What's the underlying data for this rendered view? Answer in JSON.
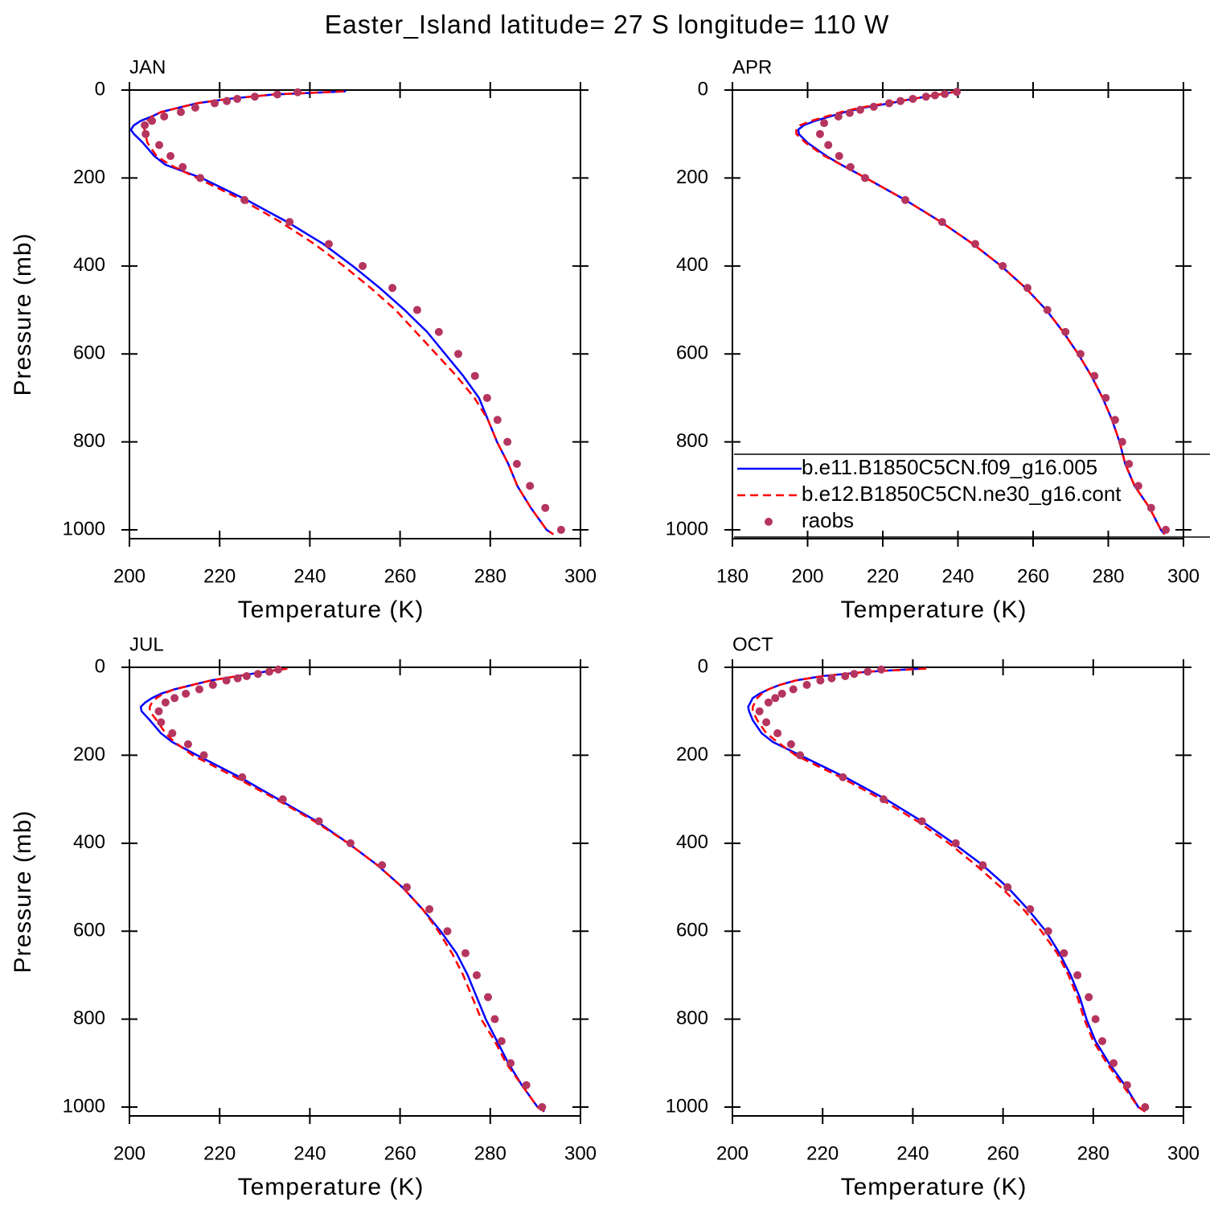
{
  "title": "Easter_Island  latitude= 27 S longitude= 110 W",
  "chart_data": [
    {
      "type": "line",
      "title": "JAN",
      "xlabel": "Temperature (K)",
      "ylabel": "Pressure (mb)",
      "xlim": [
        200,
        300
      ],
      "xticks": [
        200,
        220,
        240,
        260,
        280,
        300
      ],
      "ylim": [
        1020,
        0
      ],
      "yticks": [
        0,
        200,
        400,
        600,
        800,
        1000
      ],
      "legend": false,
      "series": [
        {
          "name": "b.e11.B1850C5CN.f09_g16.005",
          "color": "#0000ff",
          "style": "solid",
          "x": [
            248,
            232,
            222,
            215,
            211,
            207,
            205,
            202.5,
            201,
            200.3,
            201,
            203,
            205.5,
            208,
            216,
            226,
            235,
            243,
            249.5,
            255.5,
            261,
            266,
            270,
            274,
            277.5,
            279.5,
            281.5,
            284,
            286,
            289,
            292.5,
            294
          ],
          "y": [
            3,
            10,
            20,
            30,
            40,
            50,
            60,
            70,
            80,
            90,
            100,
            120,
            150,
            170,
            200,
            250,
            300,
            350,
            400,
            450,
            500,
            550,
            600,
            650,
            700,
            750,
            800,
            850,
            900,
            950,
            1000,
            1010
          ]
        },
        {
          "name": "b.e12.B1850C5CN.ne30_g16.cont",
          "color": "#ff0000",
          "style": "dashed",
          "x": [
            247.5,
            232,
            222,
            215,
            211,
            207,
            205,
            204,
            203.5,
            203.3,
            203.5,
            204,
            206,
            209,
            215,
            225,
            233.5,
            241,
            247.5,
            253.5,
            259,
            263.5,
            268,
            272.5,
            276.5,
            279.5,
            281.5,
            284,
            286,
            289,
            292.5,
            294
          ],
          "y": [
            3,
            10,
            20,
            30,
            40,
            50,
            60,
            70,
            80,
            90,
            100,
            120,
            150,
            170,
            200,
            250,
            300,
            350,
            400,
            450,
            500,
            550,
            600,
            650,
            700,
            750,
            800,
            850,
            900,
            950,
            1000,
            1010
          ]
        },
        {
          "name": "raobs",
          "color": "#b5355f",
          "style": "dots",
          "x": [
            237.3,
            232.8,
            227.8,
            223.9,
            221.6,
            218.9,
            214.6,
            211.4,
            207.7,
            205,
            203.4,
            203.6,
            206.6,
            209.1,
            211.8,
            215.7,
            225.5,
            235.5,
            244.2,
            251.7,
            258.3,
            263.8,
            268.6,
            272.9,
            276.6,
            279.3,
            281.6,
            283.8,
            285.9,
            288.8,
            292.2,
            295.7
          ],
          "y": [
            5,
            10,
            15,
            20,
            25,
            30,
            40,
            50,
            60,
            70,
            80,
            100,
            125,
            150,
            175,
            200,
            250,
            300,
            350,
            400,
            450,
            500,
            550,
            600,
            650,
            700,
            750,
            800,
            850,
            900,
            950,
            1000
          ]
        }
      ]
    },
    {
      "type": "line",
      "title": "APR",
      "xlabel": "Temperature (K)",
      "xlim": [
        180,
        300
      ],
      "xticks": [
        180,
        200,
        220,
        240,
        260,
        280,
        300
      ],
      "ylim": [
        1020,
        0
      ],
      "yticks": [
        0,
        200,
        400,
        600,
        800,
        1000
      ],
      "legend": true,
      "series": [
        {
          "name": "b.e11.B1850C5CN.f09_g16.005",
          "color": "#0000ff",
          "style": "solid",
          "x": [
            240,
            235,
            228,
            222,
            215,
            210,
            206,
            202,
            199,
            197.5,
            197.7,
            200,
            205,
            209,
            215.5,
            226,
            235.5,
            244,
            251.5,
            258,
            263.5,
            268,
            272,
            275.5,
            278.5,
            281,
            283,
            284.5,
            287,
            291,
            294,
            295
          ],
          "y": [
            3,
            10,
            20,
            30,
            40,
            50,
            60,
            70,
            80,
            90,
            100,
            120,
            150,
            170,
            200,
            250,
            300,
            350,
            400,
            450,
            500,
            550,
            600,
            650,
            700,
            750,
            800,
            850,
            900,
            950,
            1000,
            1010
          ]
        },
        {
          "name": "b.e12.B1850C5CN.ne30_g16.cont",
          "color": "#ff0000",
          "style": "dashed",
          "x": [
            240,
            235,
            228,
            221,
            214,
            209,
            205,
            201,
            198,
            197,
            197,
            199.5,
            204.5,
            209,
            215.5,
            226,
            235.5,
            244,
            251.5,
            258,
            263.5,
            268,
            272,
            275.5,
            278.5,
            281,
            283,
            284.5,
            287,
            291,
            294,
            295
          ],
          "y": [
            3,
            10,
            20,
            30,
            40,
            50,
            60,
            70,
            80,
            90,
            100,
            120,
            150,
            170,
            200,
            250,
            300,
            350,
            400,
            450,
            500,
            550,
            600,
            650,
            700,
            750,
            800,
            850,
            900,
            950,
            1000,
            1010
          ]
        },
        {
          "name": "raobs",
          "color": "#b5355f",
          "style": "dots",
          "x": [
            239.7,
            236.5,
            233.9,
            231.5,
            228,
            224.7,
            221.7,
            217.6,
            214,
            211.2,
            208.2,
            204.4,
            203.3,
            205.5,
            208.4,
            211.4,
            215.3,
            226,
            235.8,
            244.6,
            251.9,
            258.5,
            263.8,
            268.6,
            272.6,
            276.3,
            279.3,
            281.8,
            283.7,
            285.5,
            288,
            291.4,
            295.3
          ],
          "y": [
            4,
            9,
            12,
            15,
            20,
            25,
            30,
            38,
            45,
            52,
            60,
            75,
            100,
            125,
            150,
            175,
            200,
            250,
            300,
            350,
            400,
            450,
            500,
            550,
            600,
            650,
            700,
            750,
            800,
            850,
            900,
            950,
            1000
          ]
        }
      ]
    },
    {
      "type": "line",
      "title": "JUL",
      "xlabel": "Temperature (K)",
      "ylabel": "Pressure (mb)",
      "xlim": [
        200,
        300
      ],
      "xticks": [
        200,
        220,
        240,
        260,
        280,
        300
      ],
      "ylim": [
        1020,
        0
      ],
      "yticks": [
        0,
        200,
        400,
        600,
        800,
        1000
      ],
      "legend": false,
      "series": [
        {
          "name": "b.e11.B1850C5CN.f09_g16.005",
          "color": "#0000ff",
          "style": "solid",
          "x": [
            235,
            230,
            224,
            218,
            214,
            210,
            207,
            205,
            203.5,
            202.5,
            202.7,
            204.5,
            207,
            209.5,
            215,
            224.5,
            233,
            241.5,
            248.5,
            255,
            260.5,
            265,
            269,
            272.5,
            275,
            277,
            279,
            281.5,
            284,
            287,
            290.5,
            292
          ],
          "y": [
            3,
            10,
            20,
            30,
            40,
            50,
            60,
            70,
            80,
            90,
            100,
            120,
            150,
            170,
            200,
            250,
            300,
            350,
            400,
            450,
            500,
            550,
            600,
            650,
            700,
            750,
            800,
            850,
            900,
            950,
            1000,
            1010
          ]
        },
        {
          "name": "b.e12.B1850C5CN.ne30_g16.cont",
          "color": "#ff0000",
          "style": "dashed",
          "x": [
            235,
            230,
            224,
            218,
            214,
            210,
            207.5,
            206,
            205,
            204.5,
            204.5,
            206,
            208,
            210,
            214,
            223.5,
            232.5,
            241,
            248.5,
            255,
            260.5,
            265,
            268.5,
            271.5,
            274,
            276,
            278,
            281,
            283.5,
            287,
            290.5,
            292
          ],
          "y": [
            3,
            10,
            20,
            30,
            40,
            50,
            60,
            70,
            80,
            90,
            100,
            120,
            150,
            170,
            200,
            250,
            300,
            350,
            400,
            450,
            500,
            550,
            600,
            650,
            700,
            750,
            800,
            850,
            900,
            950,
            1000,
            1010
          ]
        },
        {
          "name": "raobs",
          "color": "#b5355f",
          "style": "dots",
          "x": [
            233,
            231,
            228.5,
            226,
            224,
            221.5,
            218.5,
            215.5,
            212.5,
            210,
            208,
            206.5,
            207,
            209.5,
            213,
            216.5,
            225,
            234,
            242,
            249,
            256,
            261.5,
            266.5,
            270.5,
            274.5,
            277,
            279.5,
            281,
            282.5,
            284.5,
            288,
            291.5
          ],
          "y": [
            5,
            10,
            15,
            20,
            25,
            30,
            40,
            50,
            60,
            70,
            80,
            100,
            125,
            150,
            175,
            200,
            250,
            300,
            350,
            400,
            450,
            500,
            550,
            600,
            650,
            700,
            750,
            800,
            850,
            900,
            950,
            1000
          ]
        }
      ]
    },
    {
      "type": "line",
      "title": "OCT",
      "xlabel": "Temperature (K)",
      "xlim": [
        200,
        300
      ],
      "xticks": [
        200,
        220,
        240,
        260,
        280,
        300
      ],
      "ylim": [
        1020,
        0
      ],
      "yticks": [
        0,
        200,
        400,
        600,
        800,
        1000
      ],
      "legend": false,
      "series": [
        {
          "name": "b.e11.B1850C5CN.f09_g16.005",
          "color": "#0000ff",
          "style": "solid",
          "x": [
            242,
            230,
            220,
            214,
            210.5,
            208,
            206,
            204.5,
            204,
            203.5,
            203.7,
            204.5,
            206.5,
            209,
            215,
            225,
            234,
            242,
            249,
            255.5,
            261,
            265.5,
            269.5,
            272.5,
            275,
            277,
            278.5,
            280.5,
            283.5,
            287,
            290,
            291.5
          ],
          "y": [
            3,
            10,
            20,
            30,
            40,
            50,
            60,
            70,
            80,
            90,
            100,
            120,
            150,
            170,
            200,
            250,
            300,
            350,
            400,
            450,
            500,
            550,
            600,
            650,
            700,
            750,
            800,
            850,
            900,
            950,
            1000,
            1010
          ]
        },
        {
          "name": "b.e12.B1850C5CN.ne30_g16.cont",
          "color": "#ff0000",
          "style": "dashed",
          "x": [
            243,
            230,
            220,
            214,
            210.5,
            208,
            206.5,
            205.5,
            205,
            204.5,
            204.5,
            205.5,
            207.5,
            210,
            214,
            224,
            233,
            241,
            248,
            254,
            259.5,
            264.5,
            268.5,
            272,
            274.5,
            276.5,
            278,
            280,
            283,
            286.5,
            290,
            291.5
          ],
          "y": [
            3,
            10,
            20,
            30,
            40,
            50,
            60,
            70,
            80,
            90,
            100,
            120,
            150,
            170,
            200,
            250,
            300,
            350,
            400,
            450,
            500,
            550,
            600,
            650,
            700,
            750,
            800,
            850,
            900,
            950,
            1000,
            1010
          ]
        },
        {
          "name": "raobs",
          "color": "#b5355f",
          "style": "dots",
          "x": [
            233,
            230,
            227,
            225,
            222,
            219.5,
            216.5,
            213.5,
            211,
            209.5,
            208,
            206,
            207.5,
            210,
            213,
            215,
            224.5,
            233.5,
            242,
            249.5,
            255.5,
            261,
            266,
            270,
            273.5,
            276.5,
            279,
            280.5,
            282,
            284.5,
            287.5,
            291.5
          ],
          "y": [
            5,
            10,
            15,
            20,
            25,
            30,
            40,
            50,
            60,
            70,
            80,
            100,
            125,
            150,
            175,
            200,
            250,
            300,
            350,
            400,
            450,
            500,
            550,
            600,
            650,
            700,
            750,
            800,
            850,
            900,
            950,
            1000
          ]
        }
      ]
    }
  ]
}
